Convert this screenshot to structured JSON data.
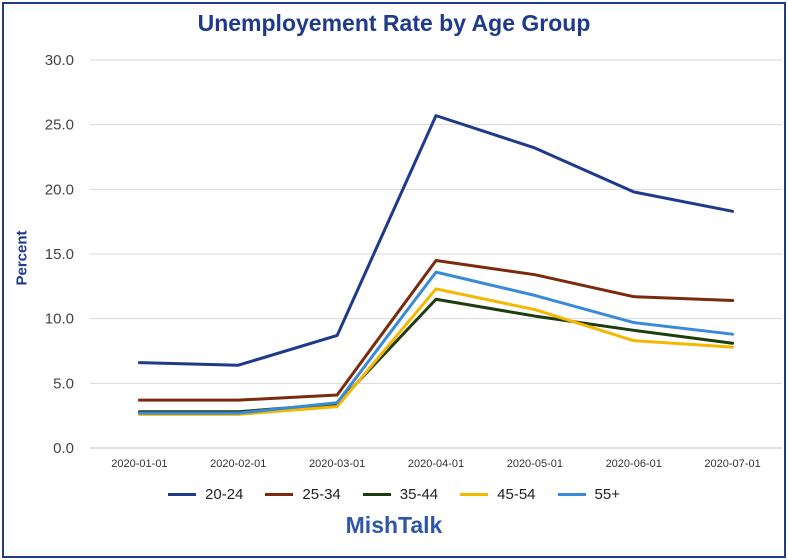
{
  "chart_data": {
    "type": "line",
    "title": "Unemployement Rate by Age Group",
    "xlabel": "",
    "ylabel": "Percent",
    "ylim": [
      0,
      30
    ],
    "yticks": [
      "0.0",
      "5.0",
      "10.0",
      "15.0",
      "20.0",
      "25.0",
      "30.0"
    ],
    "categories": [
      "2020-01-01",
      "2020-02-01",
      "2020-03-01",
      "2020-04-01",
      "2020-05-01",
      "2020-06-01",
      "2020-07-01"
    ],
    "series": [
      {
        "name": "20-24",
        "color": "#1f3a8a",
        "values": [
          6.6,
          6.4,
          8.7,
          25.7,
          23.2,
          19.8,
          18.3
        ]
      },
      {
        "name": "25-34",
        "color": "#7b2a0c",
        "values": [
          3.7,
          3.7,
          4.1,
          14.5,
          13.4,
          11.7,
          11.4
        ]
      },
      {
        "name": "35-44",
        "color": "#1e3d0f",
        "values": [
          2.8,
          2.8,
          3.4,
          11.5,
          10.2,
          9.1,
          8.1
        ]
      },
      {
        "name": "45-54",
        "color": "#f5b800",
        "values": [
          2.6,
          2.6,
          3.2,
          12.3,
          10.7,
          8.3,
          7.8
        ]
      },
      {
        "name": "55+",
        "color": "#3b8ad8",
        "values": [
          2.7,
          2.7,
          3.5,
          13.6,
          11.8,
          9.7,
          8.8
        ]
      }
    ],
    "legend": "bottom",
    "grid": true
  },
  "watermark": "MishTalk"
}
